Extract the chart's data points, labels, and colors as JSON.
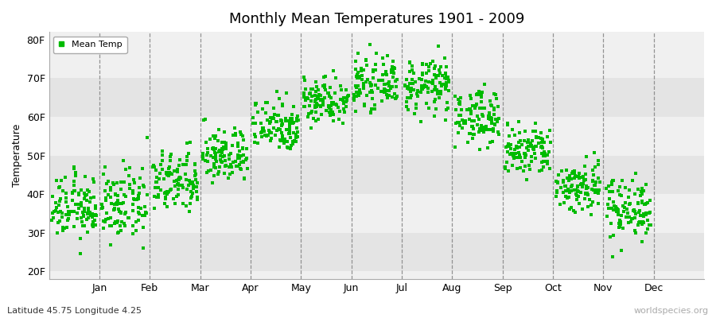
{
  "title": "Monthly Mean Temperatures 1901 - 2009",
  "ylabel": "Temperature",
  "xlabel_labels": [
    "Jan",
    "Feb",
    "Mar",
    "Apr",
    "May",
    "Jun",
    "Jul",
    "Aug",
    "Sep",
    "Oct",
    "Nov",
    "Dec"
  ],
  "bottom_left": "Latitude 45.75 Longitude 4.25",
  "bottom_right": "worldspecies.org",
  "legend_label": "Mean Temp",
  "dot_color": "#00bb00",
  "background_color": "#ffffff",
  "plot_bg_color_light": "#f0f0f0",
  "plot_bg_color_dark": "#e4e4e4",
  "yticks": [
    20,
    30,
    40,
    50,
    60,
    70,
    80
  ],
  "ytick_labels": [
    "20F",
    "30F",
    "40F",
    "50F",
    "60F",
    "70F",
    "80F"
  ],
  "ylim": [
    18,
    82
  ],
  "monthly_mean_F": [
    36.5,
    37.0,
    43.0,
    50.0,
    58.0,
    64.5,
    68.5,
    68.0,
    60.0,
    51.0,
    42.0,
    36.5
  ],
  "monthly_std_F": [
    4.0,
    4.5,
    4.0,
    3.5,
    3.5,
    3.0,
    3.0,
    3.5,
    3.5,
    3.5,
    3.5,
    4.0
  ],
  "n_years": 109,
  "seed": 12345
}
